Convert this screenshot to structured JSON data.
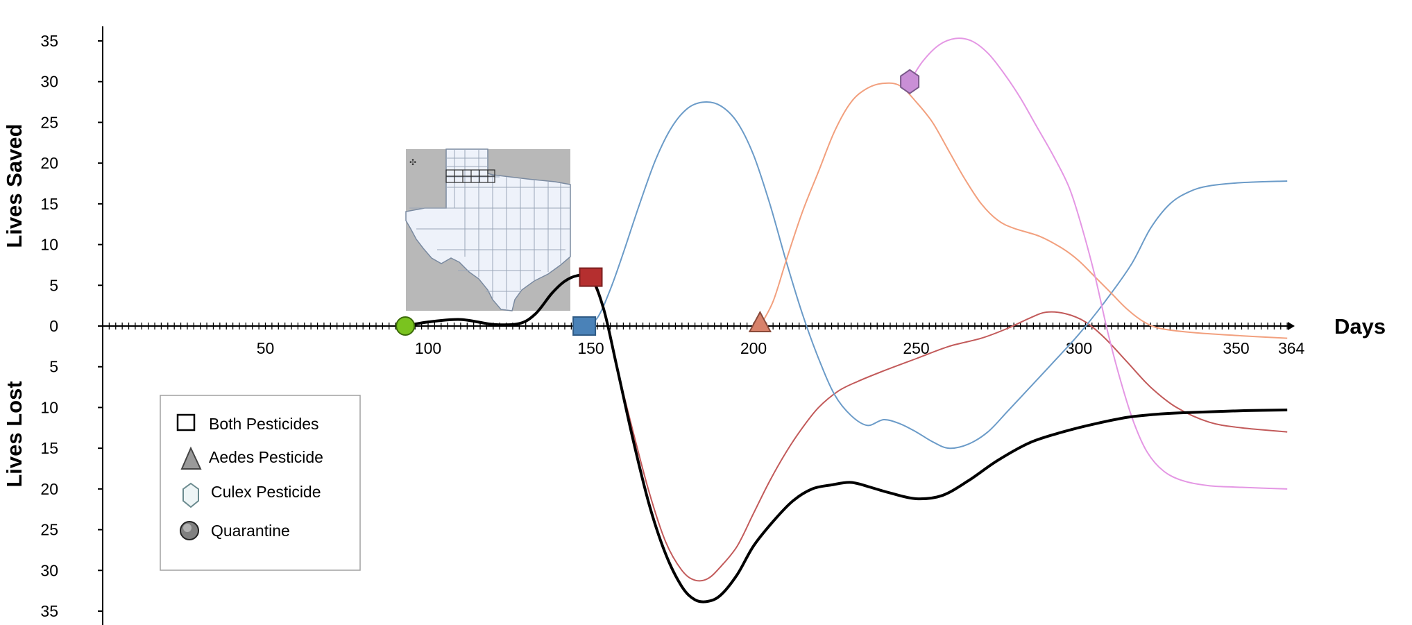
{
  "chart_data": {
    "type": "line",
    "xlabel": "Days",
    "ylabel_top": "Lives Saved",
    "ylabel_bottom": "Lives Lost",
    "xlim": [
      0,
      364
    ],
    "ylim": [
      -35,
      35
    ],
    "x_ticks": [
      50,
      100,
      150,
      200,
      250,
      300,
      350,
      364
    ],
    "y_ticks": [
      35,
      30,
      25,
      20,
      15,
      10,
      5,
      0,
      -5,
      -10,
      -15,
      -20,
      -25,
      -30,
      -35
    ],
    "grid": false,
    "legend_position": "bottom-left",
    "legend": [
      {
        "label": "Both Pesticides",
        "marker": "square"
      },
      {
        "label": "Aedes Pesticide",
        "marker": "triangle"
      },
      {
        "label": "Culex Pesticide",
        "marker": "hexagon"
      },
      {
        "label": "Quarantine",
        "marker": "circle"
      }
    ],
    "series": [
      {
        "color": "#000000",
        "width": 4,
        "points": [
          [
            93,
            0
          ],
          [
            100,
            0.5
          ],
          [
            110,
            0.8
          ],
          [
            120,
            0.2
          ],
          [
            128,
            0.3
          ],
          [
            133,
            1.5
          ],
          [
            138,
            4
          ],
          [
            142,
            5.5
          ],
          [
            146,
            6.2
          ],
          [
            150,
            6.1
          ],
          [
            154,
            2
          ],
          [
            158,
            -5
          ],
          [
            163,
            -14
          ],
          [
            168,
            -22
          ],
          [
            173,
            -28
          ],
          [
            178,
            -32
          ],
          [
            182,
            -33.6
          ],
          [
            186,
            -33.8
          ],
          [
            190,
            -33
          ],
          [
            195,
            -30.5
          ],
          [
            200,
            -27
          ],
          [
            206,
            -24
          ],
          [
            212,
            -21.5
          ],
          [
            218,
            -20
          ],
          [
            224,
            -19.5
          ],
          [
            230,
            -19.2
          ],
          [
            236,
            -19.8
          ],
          [
            242,
            -20.5
          ],
          [
            250,
            -21.2
          ],
          [
            258,
            -20.8
          ],
          [
            266,
            -19
          ],
          [
            275,
            -16.5
          ],
          [
            285,
            -14.3
          ],
          [
            295,
            -13
          ],
          [
            305,
            -12
          ],
          [
            315,
            -11.2
          ],
          [
            325,
            -10.8
          ],
          [
            335,
            -10.6
          ],
          [
            350,
            -10.4
          ],
          [
            364,
            -10.3
          ]
        ]
      },
      {
        "color": "#c25a5a",
        "width": 2,
        "points": [
          [
            150,
            6
          ],
          [
            154,
            2
          ],
          [
            158,
            -5
          ],
          [
            163,
            -13
          ],
          [
            168,
            -20.5
          ],
          [
            173,
            -26.5
          ],
          [
            178,
            -30
          ],
          [
            182,
            -31.2
          ],
          [
            186,
            -31
          ],
          [
            190,
            -29.5
          ],
          [
            195,
            -27
          ],
          [
            200,
            -23
          ],
          [
            205,
            -19
          ],
          [
            210,
            -15.5
          ],
          [
            215,
            -12.5
          ],
          [
            220,
            -10
          ],
          [
            226,
            -8
          ],
          [
            232,
            -6.8
          ],
          [
            240,
            -5.5
          ],
          [
            250,
            -4
          ],
          [
            260,
            -2.5
          ],
          [
            270,
            -1.5
          ],
          [
            278,
            -0.3
          ],
          [
            285,
            1
          ],
          [
            290,
            1.7
          ],
          [
            296,
            1.5
          ],
          [
            302,
            0.5
          ],
          [
            308,
            -1.5
          ],
          [
            315,
            -4.5
          ],
          [
            322,
            -7.5
          ],
          [
            330,
            -10
          ],
          [
            340,
            -11.8
          ],
          [
            350,
            -12.5
          ],
          [
            364,
            -13
          ]
        ]
      },
      {
        "color": "#6b9bc8",
        "width": 2,
        "points": [
          [
            148,
            0
          ],
          [
            152,
            1
          ],
          [
            156,
            4.5
          ],
          [
            160,
            9
          ],
          [
            165,
            15
          ],
          [
            170,
            20.5
          ],
          [
            175,
            24.5
          ],
          [
            180,
            26.8
          ],
          [
            185,
            27.5
          ],
          [
            190,
            27
          ],
          [
            195,
            25
          ],
          [
            200,
            21
          ],
          [
            205,
            15
          ],
          [
            210,
            8
          ],
          [
            215,
            1.5
          ],
          [
            220,
            -4
          ],
          [
            225,
            -8.5
          ],
          [
            230,
            -11
          ],
          [
            235,
            -12.2
          ],
          [
            240,
            -11.5
          ],
          [
            245,
            -12
          ],
          [
            250,
            -13
          ],
          [
            255,
            -14.2
          ],
          [
            260,
            -15
          ],
          [
            266,
            -14.5
          ],
          [
            272,
            -13
          ],
          [
            278,
            -10.5
          ],
          [
            285,
            -7.5
          ],
          [
            292,
            -4.5
          ],
          [
            300,
            -1
          ],
          [
            308,
            3
          ],
          [
            316,
            7.5
          ],
          [
            322,
            12
          ],
          [
            328,
            15
          ],
          [
            334,
            16.5
          ],
          [
            340,
            17.2
          ],
          [
            350,
            17.6
          ],
          [
            364,
            17.8
          ]
        ]
      },
      {
        "color": "#f2a07e",
        "width": 2,
        "points": [
          [
            202,
            0
          ],
          [
            206,
            3
          ],
          [
            210,
            8
          ],
          [
            215,
            14
          ],
          [
            220,
            19
          ],
          [
            225,
            24
          ],
          [
            230,
            27.5
          ],
          [
            235,
            29.2
          ],
          [
            240,
            29.8
          ],
          [
            245,
            29.5
          ],
          [
            250,
            27.5
          ],
          [
            255,
            25
          ],
          [
            260,
            21.5
          ],
          [
            265,
            18
          ],
          [
            270,
            15
          ],
          [
            275,
            13
          ],
          [
            280,
            12
          ],
          [
            288,
            11
          ],
          [
            295,
            9.5
          ],
          [
            300,
            8
          ],
          [
            305,
            6
          ],
          [
            310,
            4
          ],
          [
            315,
            2
          ],
          [
            320,
            0.5
          ],
          [
            325,
            -0.3
          ],
          [
            335,
            -0.8
          ],
          [
            350,
            -1.2
          ],
          [
            364,
            -1.5
          ]
        ]
      },
      {
        "color": "#e497e4",
        "width": 2,
        "points": [
          [
            248,
            30
          ],
          [
            252,
            32.5
          ],
          [
            257,
            34.5
          ],
          [
            262,
            35.3
          ],
          [
            267,
            35
          ],
          [
            272,
            33.5
          ],
          [
            277,
            31
          ],
          [
            282,
            28
          ],
          [
            287,
            24.5
          ],
          [
            292,
            21
          ],
          [
            297,
            17
          ],
          [
            301,
            12
          ],
          [
            305,
            6
          ],
          [
            309,
            -1
          ],
          [
            313,
            -7
          ],
          [
            317,
            -12
          ],
          [
            321,
            -15.5
          ],
          [
            326,
            -17.8
          ],
          [
            332,
            -19
          ],
          [
            340,
            -19.6
          ],
          [
            350,
            -19.8
          ],
          [
            364,
            -20
          ]
        ]
      }
    ],
    "event_markers": [
      {
        "x": 93,
        "y": 0,
        "shape": "circle",
        "fill": "#7ac31f",
        "stroke": "#3c6b0a"
      },
      {
        "x": 148,
        "y": 0,
        "shape": "square",
        "fill": "#4a82b8",
        "stroke": "#2f5b85"
      },
      {
        "x": 150,
        "y": 6,
        "shape": "square",
        "fill": "#b52f2f",
        "stroke": "#7a1e1e"
      },
      {
        "x": 202,
        "y": 0,
        "shape": "triangle",
        "fill": "#d8826b",
        "stroke": "#8a4a3a"
      },
      {
        "x": 248,
        "y": 30,
        "shape": "hexagon",
        "fill": "#c98fd6",
        "stroke": "#7a5a8a"
      }
    ]
  },
  "inset_map": {
    "name": "Texas county map",
    "fill": "#eef2fa",
    "background": "#b8b8b8",
    "lines": "#7a8aa0"
  }
}
